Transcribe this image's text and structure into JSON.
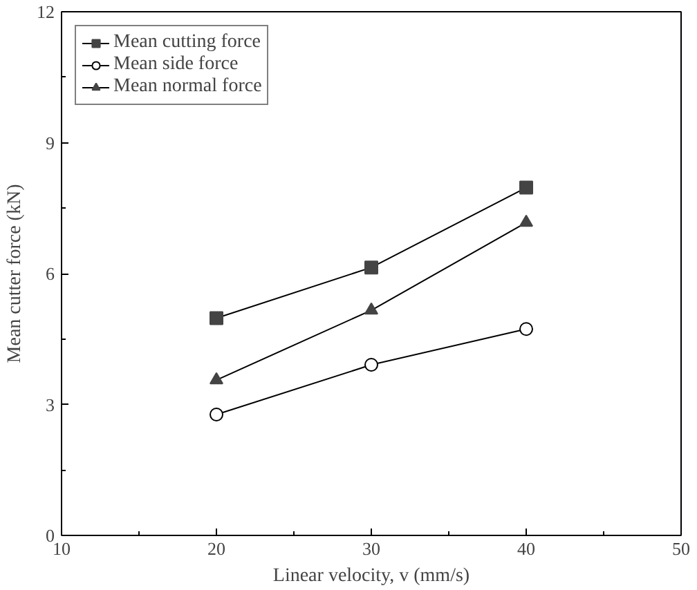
{
  "chart_data": {
    "type": "line",
    "xlabel": "Linear velocity, v (mm/s)",
    "ylabel": "Mean cutter force (kN)",
    "x": [
      20,
      30,
      40
    ],
    "series": [
      {
        "name": "Mean cutting force",
        "color": "#444444",
        "marker": "square",
        "values": [
          4.98,
          6.14,
          7.97
        ]
      },
      {
        "name": "Mean side force",
        "color": "#000000",
        "marker": "circle",
        "values": [
          2.77,
          3.91,
          4.73
        ]
      },
      {
        "name": "Mean normal force",
        "color": "#444444",
        "marker": "triangle",
        "values": [
          3.56,
          5.16,
          7.17
        ]
      }
    ],
    "xlim": [
      10,
      50
    ],
    "xticks": [
      10,
      20,
      30,
      40,
      50
    ],
    "ylim": [
      0,
      12
    ],
    "yticks": [
      0,
      3,
      6,
      9,
      12
    ],
    "grid": false,
    "legend": "top left",
    "line_style": "solid"
  }
}
